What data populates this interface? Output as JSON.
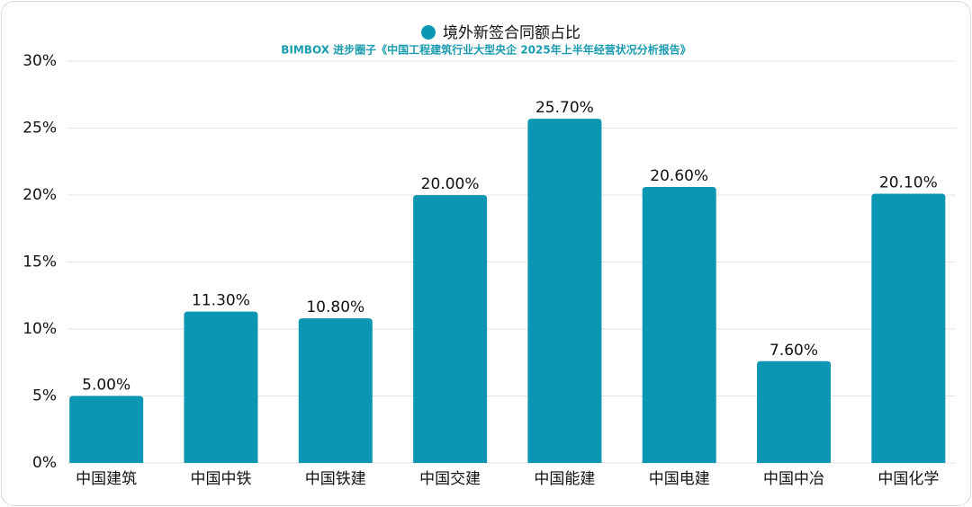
{
  "chart_data": {
    "type": "bar",
    "subtitle": "BIMBOX 进步圈子《中国工程建筑行业大型央企 2025年上半年经营状况分析报告》",
    "categories": [
      "中国建筑",
      "中国中铁",
      "中国铁建",
      "中国交建",
      "中国能建",
      "中国电建",
      "中国中冶",
      "中国化学"
    ],
    "series": [
      {
        "name": "境外新签合同额占比",
        "color": "#0b97b3",
        "values": [
          5.0,
          11.3,
          10.8,
          20.0,
          25.7,
          20.6,
          7.6,
          20.1
        ],
        "value_labels": [
          "5.00%",
          "11.30%",
          "10.80%",
          "20.00%",
          "25.70%",
          "20.60%",
          "7.60%",
          "20.10%"
        ]
      }
    ],
    "ylim": [
      0,
      30
    ],
    "yticks": [
      {
        "value": 0,
        "label": "0%"
      },
      {
        "value": 5,
        "label": "5%"
      },
      {
        "value": 10,
        "label": "10%"
      },
      {
        "value": 15,
        "label": "15%"
      },
      {
        "value": 20,
        "label": "20%"
      },
      {
        "value": 25,
        "label": "25%"
      },
      {
        "value": 30,
        "label": "30%"
      }
    ],
    "grid": true
  }
}
